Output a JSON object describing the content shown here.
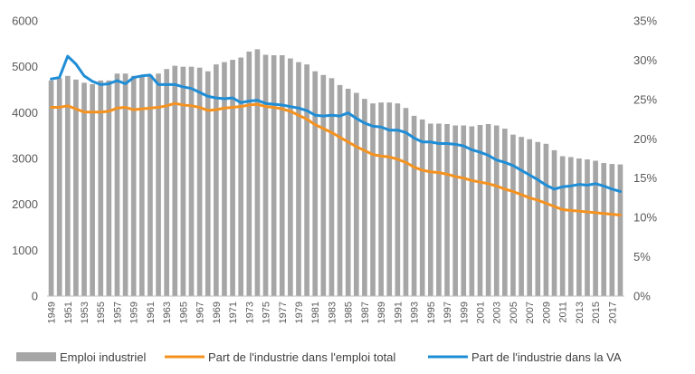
{
  "chart_data": {
    "type": "bar",
    "title": "",
    "xlabel": "",
    "ylabel": "",
    "ylim": [
      0,
      6000
    ],
    "y_ticks": [
      0,
      1000,
      2000,
      3000,
      4000,
      5000,
      6000
    ],
    "y2lim": [
      0,
      35
    ],
    "y2_ticks": [
      "0%",
      "5%",
      "10%",
      "15%",
      "20%",
      "25%",
      "30%",
      "35%"
    ],
    "grid": false,
    "legend_position": "bottom",
    "years": [
      1949,
      1950,
      1951,
      1952,
      1953,
      1954,
      1955,
      1956,
      1957,
      1958,
      1959,
      1960,
      1961,
      1962,
      1963,
      1964,
      1965,
      1966,
      1967,
      1968,
      1969,
      1970,
      1971,
      1972,
      1973,
      1974,
      1975,
      1976,
      1977,
      1978,
      1979,
      1980,
      1981,
      1982,
      1983,
      1984,
      1985,
      1986,
      1987,
      1988,
      1989,
      1990,
      1991,
      1992,
      1993,
      1994,
      1995,
      1996,
      1997,
      1998,
      1999,
      2000,
      2001,
      2002,
      2003,
      2004,
      2005,
      2006,
      2007,
      2008,
      2009,
      2010,
      2011,
      2012,
      2013,
      2014,
      2015,
      2016,
      2017,
      2018
    ],
    "x_tick_labels": [
      "1949",
      "1951",
      "1953",
      "1955",
      "1957",
      "1959",
      "1961",
      "1963",
      "1965",
      "1967",
      "1969",
      "1971",
      "1973",
      "1975",
      "1977",
      "1979",
      "1981",
      "1983",
      "1985",
      "1987",
      "1989",
      "1991",
      "1993",
      "1995",
      "1997",
      "1999",
      "2001",
      "2003",
      "2005",
      "2007",
      "2009",
      "2011",
      "2013",
      "2015",
      "2017"
    ],
    "series": [
      {
        "name": "Emploi industriel",
        "kind": "bar",
        "axis": "left",
        "color": "#a6a6a6",
        "values": [
          4700,
          4750,
          4800,
          4720,
          4650,
          4620,
          4700,
          4700,
          4850,
          4850,
          4800,
          4800,
          4820,
          4850,
          4950,
          5020,
          5000,
          5000,
          4980,
          4900,
          5050,
          5100,
          5150,
          5200,
          5330,
          5380,
          5260,
          5250,
          5250,
          5180,
          5100,
          5050,
          4900,
          4820,
          4750,
          4600,
          4520,
          4430,
          4300,
          4200,
          4220,
          4220,
          4200,
          4100,
          3930,
          3850,
          3760,
          3760,
          3750,
          3720,
          3720,
          3700,
          3730,
          3750,
          3720,
          3650,
          3520,
          3470,
          3420,
          3360,
          3320,
          3180,
          3050,
          3030,
          3000,
          2980,
          2950,
          2900,
          2880,
          2870
        ]
      },
      {
        "name": "Part de l'industrie dans l'emploi total",
        "kind": "line",
        "axis": "right",
        "color": "#f5921f",
        "values": [
          24.0,
          24.0,
          24.2,
          23.8,
          23.4,
          23.4,
          23.4,
          23.5,
          23.9,
          24.0,
          23.7,
          23.8,
          23.9,
          24.0,
          24.2,
          24.5,
          24.3,
          24.2,
          24.0,
          23.6,
          23.7,
          23.9,
          24.0,
          24.1,
          24.3,
          24.4,
          24.1,
          24.0,
          23.8,
          23.5,
          23.0,
          22.5,
          21.8,
          21.3,
          20.8,
          20.2,
          19.6,
          19.0,
          18.5,
          18.0,
          17.8,
          17.7,
          17.4,
          17.0,
          16.4,
          16.0,
          15.8,
          15.7,
          15.5,
          15.2,
          15.0,
          14.7,
          14.5,
          14.3,
          14.0,
          13.6,
          13.3,
          12.9,
          12.5,
          12.2,
          11.8,
          11.4,
          11.0,
          10.9,
          10.8,
          10.7,
          10.6,
          10.5,
          10.4,
          10.3
        ]
      },
      {
        "name": "Part de l'industrie dans la VA",
        "kind": "line",
        "axis": "right",
        "color": "#1f8dd6",
        "values": [
          27.6,
          27.8,
          30.5,
          29.5,
          28.0,
          27.3,
          26.9,
          27.0,
          27.4,
          27.0,
          27.8,
          28.0,
          28.1,
          26.9,
          26.9,
          26.9,
          26.6,
          26.4,
          25.9,
          25.4,
          25.2,
          25.1,
          25.2,
          24.6,
          24.8,
          24.9,
          24.5,
          24.4,
          24.3,
          24.1,
          23.9,
          23.6,
          23.0,
          22.9,
          23.0,
          22.9,
          23.3,
          22.6,
          22.0,
          21.6,
          21.5,
          21.1,
          21.1,
          20.8,
          20.1,
          19.6,
          19.6,
          19.4,
          19.4,
          19.3,
          19.1,
          18.6,
          18.3,
          17.9,
          17.3,
          17.0,
          16.6,
          16.0,
          15.4,
          14.8,
          14.1,
          13.6,
          13.9,
          14.0,
          14.2,
          14.1,
          14.3,
          14.0,
          13.6,
          13.3
        ]
      }
    ]
  }
}
